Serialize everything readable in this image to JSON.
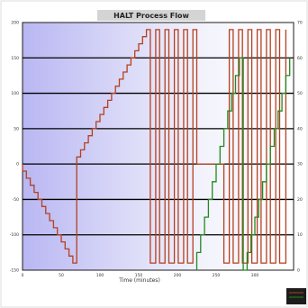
{
  "chart_data": {
    "type": "line",
    "title": "HALT Process Flow",
    "xlabel": "Time (minutes)",
    "ylabel": "",
    "y2label": "",
    "xlim": [
      0,
      350
    ],
    "ylim": [
      -150,
      200
    ],
    "y2lim": [
      0,
      70
    ],
    "grid": true,
    "x_ticks": [
      "0",
      "50",
      "100",
      "150",
      "200",
      "250",
      "300"
    ],
    "y_ticks": [
      "200",
      "150",
      "100",
      "50",
      "0",
      "-50",
      "-100",
      "-150"
    ],
    "y2_ticks": [
      "70",
      "60",
      "50",
      "40",
      "30",
      "20",
      "10",
      "0"
    ],
    "series": [
      {
        "name": "",
        "color": "#b5401f",
        "points": [
          [
            0,
            0
          ],
          [
            0,
            -10
          ],
          [
            5,
            -10
          ],
          [
            5,
            -20
          ],
          [
            10,
            -20
          ],
          [
            10,
            -30
          ],
          [
            15,
            -30
          ],
          [
            15,
            -40
          ],
          [
            20,
            -40
          ],
          [
            20,
            -50
          ],
          [
            25,
            -50
          ],
          [
            25,
            -60
          ],
          [
            30,
            -60
          ],
          [
            30,
            -70
          ],
          [
            35,
            -70
          ],
          [
            35,
            -80
          ],
          [
            40,
            -80
          ],
          [
            40,
            -90
          ],
          [
            45,
            -90
          ],
          [
            45,
            -100
          ],
          [
            50,
            -100
          ],
          [
            50,
            -110
          ],
          [
            55,
            -110
          ],
          [
            55,
            -120
          ],
          [
            60,
            -120
          ],
          [
            60,
            -130
          ],
          [
            65,
            -130
          ],
          [
            65,
            -140
          ],
          [
            70,
            -140
          ],
          [
            70,
            10
          ],
          [
            75,
            10
          ],
          [
            75,
            20
          ],
          [
            80,
            20
          ],
          [
            80,
            30
          ],
          [
            85,
            30
          ],
          [
            85,
            40
          ],
          [
            90,
            40
          ],
          [
            90,
            50
          ],
          [
            95,
            50
          ],
          [
            95,
            60
          ],
          [
            100,
            60
          ],
          [
            100,
            70
          ],
          [
            105,
            70
          ],
          [
            105,
            80
          ],
          [
            110,
            80
          ],
          [
            110,
            90
          ],
          [
            115,
            90
          ],
          [
            115,
            100
          ],
          [
            120,
            100
          ],
          [
            120,
            110
          ],
          [
            125,
            110
          ],
          [
            125,
            120
          ],
          [
            130,
            120
          ],
          [
            130,
            130
          ],
          [
            135,
            130
          ],
          [
            135,
            140
          ],
          [
            140,
            140
          ],
          [
            140,
            150
          ],
          [
            145,
            150
          ],
          [
            145,
            160
          ],
          [
            150,
            160
          ],
          [
            150,
            170
          ],
          [
            155,
            170
          ],
          [
            155,
            180
          ],
          [
            160,
            180
          ],
          [
            160,
            190
          ],
          [
            165,
            190
          ],
          [
            165,
            -140
          ],
          [
            172,
            -140
          ],
          [
            172,
            190
          ],
          [
            177,
            190
          ],
          [
            177,
            -140
          ],
          [
            184,
            -140
          ],
          [
            184,
            190
          ],
          [
            189,
            190
          ],
          [
            189,
            -140
          ],
          [
            196,
            -140
          ],
          [
            196,
            190
          ],
          [
            201,
            190
          ],
          [
            201,
            -140
          ],
          [
            208,
            -140
          ],
          [
            208,
            190
          ],
          [
            213,
            190
          ],
          [
            213,
            -140
          ],
          [
            220,
            -140
          ],
          [
            220,
            190
          ],
          [
            225,
            190
          ],
          [
            225,
            0
          ],
          [
            260,
            0
          ],
          [
            260,
            -140
          ],
          [
            267,
            -140
          ],
          [
            267,
            190
          ],
          [
            272,
            190
          ],
          [
            272,
            -140
          ],
          [
            279,
            -140
          ],
          [
            279,
            190
          ],
          [
            284,
            190
          ],
          [
            284,
            -140
          ],
          [
            291,
            -140
          ],
          [
            291,
            190
          ],
          [
            296,
            190
          ],
          [
            296,
            -140
          ],
          [
            303,
            -140
          ],
          [
            303,
            190
          ],
          [
            308,
            190
          ],
          [
            308,
            -140
          ],
          [
            315,
            -140
          ],
          [
            315,
            190
          ],
          [
            320,
            190
          ],
          [
            320,
            -140
          ],
          [
            327,
            -140
          ],
          [
            327,
            190
          ],
          [
            332,
            190
          ],
          [
            332,
            -140
          ],
          [
            340,
            -140
          ],
          [
            340,
            190
          ]
        ]
      },
      {
        "name": "",
        "color": "#1f8a1f",
        "points": [
          [
            225,
            0
          ],
          [
            225,
            5
          ],
          [
            230,
            5
          ],
          [
            230,
            10
          ],
          [
            235,
            10
          ],
          [
            235,
            15
          ],
          [
            240,
            15
          ],
          [
            240,
            20
          ],
          [
            245,
            20
          ],
          [
            245,
            25
          ],
          [
            250,
            25
          ],
          [
            250,
            30
          ],
          [
            255,
            30
          ],
          [
            255,
            35
          ],
          [
            260,
            35
          ],
          [
            260,
            40
          ],
          [
            265,
            40
          ],
          [
            265,
            45
          ],
          [
            270,
            45
          ],
          [
            270,
            50
          ],
          [
            275,
            50
          ],
          [
            275,
            55
          ],
          [
            280,
            55
          ],
          [
            280,
            60
          ],
          [
            285,
            60
          ],
          [
            285,
            0
          ],
          [
            290,
            0
          ],
          [
            290,
            5
          ],
          [
            295,
            5
          ],
          [
            295,
            10
          ],
          [
            300,
            10
          ],
          [
            300,
            15
          ],
          [
            305,
            15
          ],
          [
            305,
            20
          ],
          [
            310,
            20
          ],
          [
            310,
            25
          ],
          [
            315,
            25
          ],
          [
            315,
            30
          ],
          [
            320,
            30
          ],
          [
            320,
            35
          ],
          [
            325,
            35
          ],
          [
            325,
            40
          ],
          [
            330,
            40
          ],
          [
            330,
            45
          ],
          [
            335,
            45
          ],
          [
            335,
            50
          ],
          [
            340,
            50
          ],
          [
            340,
            55
          ],
          [
            345,
            55
          ],
          [
            345,
            60
          ]
        ]
      }
    ],
    "colors": {
      "background_left": "#b9b7f2",
      "background_right": "#ffffff",
      "grid": "#000000",
      "title_bar": "#d4d4d4",
      "frame": "#1c1c1c"
    }
  }
}
